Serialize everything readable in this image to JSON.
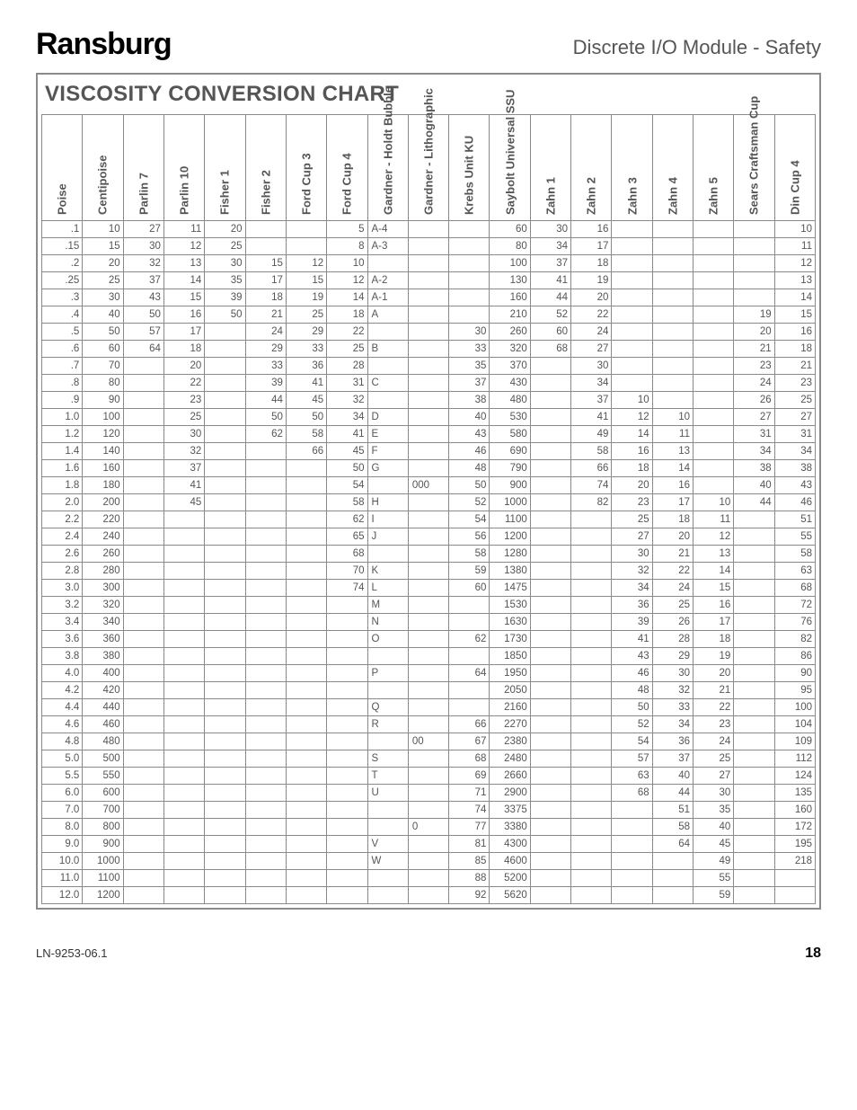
{
  "brand": "Ransburg",
  "doc_title": "Discrete I/O Module - Safety",
  "chart_title": "VISCOSITY CONVERSION CHART",
  "doc_number": "LN-9253-06.1",
  "page_number": "18",
  "columns": [
    "Poise",
    "Centipoise",
    "Parlin 7",
    "Parlin 10",
    "Fisher 1",
    "Fisher 2",
    "Ford Cup 3",
    "Ford Cup 4",
    "Gardner - Holdt Bubble",
    "Gardner - Lithographic",
    "Krebs Unit KU",
    "Saybolt Universal SSU",
    "Zahn 1",
    "Zahn 2",
    "Zahn 3",
    "Zahn 4",
    "Zahn 5",
    "Sears Craftsman Cup",
    "Din Cup 4"
  ],
  "rows": [
    [
      ".1",
      "10",
      "27",
      "11",
      "20",
      "",
      "",
      "5",
      "A-4",
      "",
      "",
      "60",
      "30",
      "16",
      "",
      "",
      "",
      "",
      "10"
    ],
    [
      ".15",
      "15",
      "30",
      "12",
      "25",
      "",
      "",
      "8",
      "A-3",
      "",
      "",
      "80",
      "34",
      "17",
      "",
      "",
      "",
      "",
      "11"
    ],
    [
      ".2",
      "20",
      "32",
      "13",
      "30",
      "15",
      "12",
      "10",
      "",
      "",
      "",
      "100",
      "37",
      "18",
      "",
      "",
      "",
      "",
      "12"
    ],
    [
      ".25",
      "25",
      "37",
      "14",
      "35",
      "17",
      "15",
      "12",
      "A-2",
      "",
      "",
      "130",
      "41",
      "19",
      "",
      "",
      "",
      "",
      "13"
    ],
    [
      ".3",
      "30",
      "43",
      "15",
      "39",
      "18",
      "19",
      "14",
      "A-1",
      "",
      "",
      "160",
      "44",
      "20",
      "",
      "",
      "",
      "",
      "14"
    ],
    [
      ".4",
      "40",
      "50",
      "16",
      "50",
      "21",
      "25",
      "18",
      "A",
      "",
      "",
      "210",
      "52",
      "22",
      "",
      "",
      "",
      "19",
      "15"
    ],
    [
      ".5",
      "50",
      "57",
      "17",
      "",
      "24",
      "29",
      "22",
      "",
      "",
      "30",
      "260",
      "60",
      "24",
      "",
      "",
      "",
      "20",
      "16"
    ],
    [
      ".6",
      "60",
      "64",
      "18",
      "",
      "29",
      "33",
      "25",
      "B",
      "",
      "33",
      "320",
      "68",
      "27",
      "",
      "",
      "",
      "21",
      "18"
    ],
    [
      ".7",
      "70",
      "",
      "20",
      "",
      "33",
      "36",
      "28",
      "",
      "",
      "35",
      "370",
      "",
      "30",
      "",
      "",
      "",
      "23",
      "21"
    ],
    [
      ".8",
      "80",
      "",
      "22",
      "",
      "39",
      "41",
      "31",
      "C",
      "",
      "37",
      "430",
      "",
      "34",
      "",
      "",
      "",
      "24",
      "23"
    ],
    [
      ".9",
      "90",
      "",
      "23",
      "",
      "44",
      "45",
      "32",
      "",
      "",
      "38",
      "480",
      "",
      "37",
      "10",
      "",
      "",
      "26",
      "25"
    ],
    [
      "1.0",
      "100",
      "",
      "25",
      "",
      "50",
      "50",
      "34",
      "D",
      "",
      "40",
      "530",
      "",
      "41",
      "12",
      "10",
      "",
      "27",
      "27"
    ],
    [
      "1.2",
      "120",
      "",
      "30",
      "",
      "62",
      "58",
      "41",
      "E",
      "",
      "43",
      "580",
      "",
      "49",
      "14",
      "11",
      "",
      "31",
      "31"
    ],
    [
      "1.4",
      "140",
      "",
      "32",
      "",
      "",
      "66",
      "45",
      "F",
      "",
      "46",
      "690",
      "",
      "58",
      "16",
      "13",
      "",
      "34",
      "34"
    ],
    [
      "1.6",
      "160",
      "",
      "37",
      "",
      "",
      "",
      "50",
      "G",
      "",
      "48",
      "790",
      "",
      "66",
      "18",
      "14",
      "",
      "38",
      "38"
    ],
    [
      "1.8",
      "180",
      "",
      "41",
      "",
      "",
      "",
      "54",
      "",
      "000",
      "50",
      "900",
      "",
      "74",
      "20",
      "16",
      "",
      "40",
      "43"
    ],
    [
      "2.0",
      "200",
      "",
      "45",
      "",
      "",
      "",
      "58",
      "H",
      "",
      "52",
      "1000",
      "",
      "82",
      "23",
      "17",
      "10",
      "44",
      "46"
    ],
    [
      "2.2",
      "220",
      "",
      "",
      "",
      "",
      "",
      "62",
      "I",
      "",
      "54",
      "1100",
      "",
      "",
      "25",
      "18",
      "11",
      "",
      "51"
    ],
    [
      "2.4",
      "240",
      "",
      "",
      "",
      "",
      "",
      "65",
      "J",
      "",
      "56",
      "1200",
      "",
      "",
      "27",
      "20",
      "12",
      "",
      "55"
    ],
    [
      "2.6",
      "260",
      "",
      "",
      "",
      "",
      "",
      "68",
      "",
      "",
      "58",
      "1280",
      "",
      "",
      "30",
      "21",
      "13",
      "",
      "58"
    ],
    [
      "2.8",
      "280",
      "",
      "",
      "",
      "",
      "",
      "70",
      "K",
      "",
      "59",
      "1380",
      "",
      "",
      "32",
      "22",
      "14",
      "",
      "63"
    ],
    [
      "3.0",
      "300",
      "",
      "",
      "",
      "",
      "",
      "74",
      "L",
      "",
      "60",
      "1475",
      "",
      "",
      "34",
      "24",
      "15",
      "",
      "68"
    ],
    [
      "3.2",
      "320",
      "",
      "",
      "",
      "",
      "",
      "",
      "M",
      "",
      "",
      "1530",
      "",
      "",
      "36",
      "25",
      "16",
      "",
      "72"
    ],
    [
      "3.4",
      "340",
      "",
      "",
      "",
      "",
      "",
      "",
      "N",
      "",
      "",
      "1630",
      "",
      "",
      "39",
      "26",
      "17",
      "",
      "76"
    ],
    [
      "3.6",
      "360",
      "",
      "",
      "",
      "",
      "",
      "",
      "O",
      "",
      "62",
      "1730",
      "",
      "",
      "41",
      "28",
      "18",
      "",
      "82"
    ],
    [
      "3.8",
      "380",
      "",
      "",
      "",
      "",
      "",
      "",
      "",
      "",
      "",
      "1850",
      "",
      "",
      "43",
      "29",
      "19",
      "",
      "86"
    ],
    [
      "4.0",
      "400",
      "",
      "",
      "",
      "",
      "",
      "",
      "P",
      "",
      "64",
      "1950",
      "",
      "",
      "46",
      "30",
      "20",
      "",
      "90"
    ],
    [
      "4.2",
      "420",
      "",
      "",
      "",
      "",
      "",
      "",
      "",
      "",
      "",
      "2050",
      "",
      "",
      "48",
      "32",
      "21",
      "",
      "95"
    ],
    [
      "4.4",
      "440",
      "",
      "",
      "",
      "",
      "",
      "",
      "Q",
      "",
      "",
      "2160",
      "",
      "",
      "50",
      "33",
      "22",
      "",
      "100"
    ],
    [
      "4.6",
      "460",
      "",
      "",
      "",
      "",
      "",
      "",
      "R",
      "",
      "66",
      "2270",
      "",
      "",
      "52",
      "34",
      "23",
      "",
      "104"
    ],
    [
      "4.8",
      "480",
      "",
      "",
      "",
      "",
      "",
      "",
      "",
      "00",
      "67",
      "2380",
      "",
      "",
      "54",
      "36",
      "24",
      "",
      "109"
    ],
    [
      "5.0",
      "500",
      "",
      "",
      "",
      "",
      "",
      "",
      "S",
      "",
      "68",
      "2480",
      "",
      "",
      "57",
      "37",
      "25",
      "",
      "112"
    ],
    [
      "5.5",
      "550",
      "",
      "",
      "",
      "",
      "",
      "",
      "T",
      "",
      "69",
      "2660",
      "",
      "",
      "63",
      "40",
      "27",
      "",
      "124"
    ],
    [
      "6.0",
      "600",
      "",
      "",
      "",
      "",
      "",
      "",
      "U",
      "",
      "71",
      "2900",
      "",
      "",
      "68",
      "44",
      "30",
      "",
      "135"
    ],
    [
      "7.0",
      "700",
      "",
      "",
      "",
      "",
      "",
      "",
      "",
      "",
      "74",
      "3375",
      "",
      "",
      "",
      "51",
      "35",
      "",
      "160"
    ],
    [
      "8.0",
      "800",
      "",
      "",
      "",
      "",
      "",
      "",
      "",
      "0",
      "77",
      "3380",
      "",
      "",
      "",
      "58",
      "40",
      "",
      "172"
    ],
    [
      "9.0",
      "900",
      "",
      "",
      "",
      "",
      "",
      "",
      "V",
      "",
      "81",
      "4300",
      "",
      "",
      "",
      "64",
      "45",
      "",
      "195"
    ],
    [
      "10.0",
      "1000",
      "",
      "",
      "",
      "",
      "",
      "",
      "W",
      "",
      "85",
      "4600",
      "",
      "",
      "",
      "",
      "49",
      "",
      "218"
    ],
    [
      "11.0",
      "1100",
      "",
      "",
      "",
      "",
      "",
      "",
      "",
      "",
      "88",
      "5200",
      "",
      "",
      "",
      "",
      "55",
      "",
      ""
    ],
    [
      "12.0",
      "1200",
      "",
      "",
      "",
      "",
      "",
      "",
      "",
      "",
      "92",
      "5620",
      "",
      "",
      "",
      "",
      "59",
      "",
      ""
    ]
  ],
  "left_align_cols": [
    8,
    9
  ]
}
